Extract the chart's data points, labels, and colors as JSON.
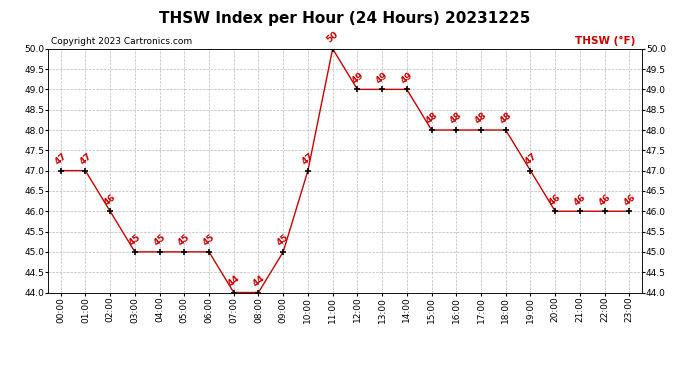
{
  "title": "THSW Index per Hour (24 Hours) 20231225",
  "copyright": "Copyright 2023 Cartronics.com",
  "legend_label": "THSW (°F)",
  "hours": [
    0,
    1,
    2,
    3,
    4,
    5,
    6,
    7,
    8,
    9,
    10,
    11,
    12,
    13,
    14,
    15,
    16,
    17,
    18,
    19,
    20,
    21,
    22,
    23
  ],
  "values": [
    47,
    47,
    46,
    45,
    45,
    45,
    45,
    44,
    44,
    45,
    47,
    50,
    49,
    49,
    49,
    48,
    48,
    48,
    48,
    47,
    46,
    46,
    46,
    46
  ],
  "ylim": [
    44.0,
    50.0
  ],
  "ytick_min": 44.0,
  "ytick_max": 50.0,
  "ytick_step": 0.5,
  "line_color": "#cc0000",
  "marker_color": "#000000",
  "label_color": "#cc0000",
  "grid_color": "#bbbbbb",
  "background_color": "#ffffff",
  "title_fontsize": 11,
  "copyright_fontsize": 6.5,
  "label_fontsize": 6.5,
  "tick_fontsize": 6.5,
  "legend_fontsize": 7.5
}
